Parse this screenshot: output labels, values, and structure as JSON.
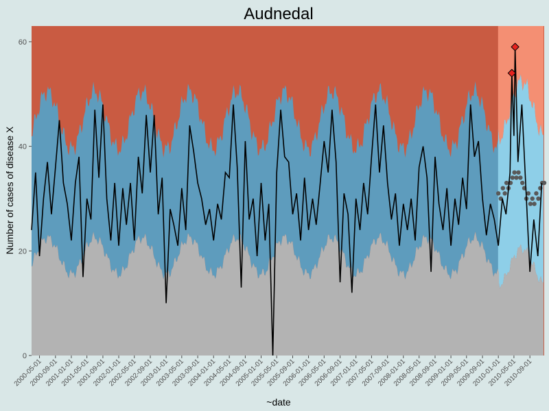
{
  "chart_data": {
    "type": "line",
    "title": "Audnedal",
    "xlabel": "~date",
    "ylabel": "Number of cases of disease X",
    "ylim": [
      0,
      63
    ],
    "y_ticks": [
      0,
      20,
      40,
      60
    ],
    "x_range": [
      "2000-03-01",
      "2010-12-20"
    ],
    "x_tick_labels": [
      "2000-05-01",
      "2000-09-01",
      "2001-01-01",
      "2001-05-01",
      "2001-09-01",
      "2002-01-01",
      "2002-05-01",
      "2002-09-01",
      "2003-01-01",
      "2003-05-01",
      "2003-09-01",
      "2004-01-01",
      "2004-05-01",
      "2004-09-01",
      "2005-01-01",
      "2005-05-01",
      "2005-09-01",
      "2006-01-01",
      "2006-05-01",
      "2006-09-01",
      "2007-01-01",
      "2007-05-01",
      "2007-09-01",
      "2008-01-01",
      "2008-05-01",
      "2008-09-01",
      "2009-01-01",
      "2009-05-01",
      "2009-09-01",
      "2010-01-01",
      "2010-05-01",
      "2010-09-01"
    ],
    "training_period_end": "2010-01-01",
    "colors": {
      "background": "#d9e7e7",
      "upper_band": "#c95b42",
      "upper_band_test": "#f48f73",
      "normal_band": "#5e9cbd",
      "normal_band_test": "#8ecfe8",
      "lower_band": "#b3b3b3",
      "observed_line": "#000000",
      "baseline_points": "#595959",
      "alert_marker": "#e8231f"
    },
    "observed_series": [
      {
        "x": "2000-03-01",
        "y": 24
      },
      {
        "x": "2000-04-01",
        "y": 35
      },
      {
        "x": "2000-05-01",
        "y": 19
      },
      {
        "x": "2000-06-01",
        "y": 30
      },
      {
        "x": "2000-07-01",
        "y": 37
      },
      {
        "x": "2000-08-01",
        "y": 27
      },
      {
        "x": "2000-09-01",
        "y": 36
      },
      {
        "x": "2000-10-01",
        "y": 45
      },
      {
        "x": "2000-11-01",
        "y": 33
      },
      {
        "x": "2000-12-01",
        "y": 29
      },
      {
        "x": "2001-01-01",
        "y": 22
      },
      {
        "x": "2001-02-01",
        "y": 33
      },
      {
        "x": "2001-03-01",
        "y": 38
      },
      {
        "x": "2001-04-01",
        "y": 15
      },
      {
        "x": "2001-05-01",
        "y": 30
      },
      {
        "x": "2001-06-01",
        "y": 26
      },
      {
        "x": "2001-07-01",
        "y": 47
      },
      {
        "x": "2001-08-01",
        "y": 34
      },
      {
        "x": "2001-09-01",
        "y": 48
      },
      {
        "x": "2001-10-01",
        "y": 30
      },
      {
        "x": "2001-11-01",
        "y": 22
      },
      {
        "x": "2001-12-01",
        "y": 33
      },
      {
        "x": "2002-01-01",
        "y": 21
      },
      {
        "x": "2002-02-01",
        "y": 32
      },
      {
        "x": "2002-03-01",
        "y": 25
      },
      {
        "x": "2002-04-01",
        "y": 33
      },
      {
        "x": "2002-05-01",
        "y": 22
      },
      {
        "x": "2002-06-01",
        "y": 38
      },
      {
        "x": "2002-07-01",
        "y": 31
      },
      {
        "x": "2002-08-01",
        "y": 46
      },
      {
        "x": "2002-09-01",
        "y": 35
      },
      {
        "x": "2002-10-01",
        "y": 46
      },
      {
        "x": "2002-11-01",
        "y": 27
      },
      {
        "x": "2002-12-01",
        "y": 34
      },
      {
        "x": "2003-01-01",
        "y": 10
      },
      {
        "x": "2003-02-01",
        "y": 28
      },
      {
        "x": "2003-03-01",
        "y": 25
      },
      {
        "x": "2003-04-01",
        "y": 21
      },
      {
        "x": "2003-05-01",
        "y": 32
      },
      {
        "x": "2003-06-01",
        "y": 24
      },
      {
        "x": "2003-07-01",
        "y": 44
      },
      {
        "x": "2003-08-01",
        "y": 39
      },
      {
        "x": "2003-09-01",
        "y": 33
      },
      {
        "x": "2003-10-01",
        "y": 30
      },
      {
        "x": "2003-11-01",
        "y": 25
      },
      {
        "x": "2003-12-01",
        "y": 28
      },
      {
        "x": "2004-01-01",
        "y": 22
      },
      {
        "x": "2004-02-01",
        "y": 29
      },
      {
        "x": "2004-03-01",
        "y": 26
      },
      {
        "x": "2004-04-01",
        "y": 35
      },
      {
        "x": "2004-05-01",
        "y": 34
      },
      {
        "x": "2004-06-01",
        "y": 48
      },
      {
        "x": "2004-07-01",
        "y": 36
      },
      {
        "x": "2004-08-01",
        "y": 13
      },
      {
        "x": "2004-09-01",
        "y": 41
      },
      {
        "x": "2004-10-01",
        "y": 26
      },
      {
        "x": "2004-11-01",
        "y": 30
      },
      {
        "x": "2004-12-01",
        "y": 19
      },
      {
        "x": "2005-01-01",
        "y": 33
      },
      {
        "x": "2005-02-01",
        "y": 22
      },
      {
        "x": "2005-03-01",
        "y": 29
      },
      {
        "x": "2005-04-01",
        "y": 0
      },
      {
        "x": "2005-05-01",
        "y": 35
      },
      {
        "x": "2005-06-01",
        "y": 47
      },
      {
        "x": "2005-07-01",
        "y": 38
      },
      {
        "x": "2005-08-01",
        "y": 37
      },
      {
        "x": "2005-09-01",
        "y": 27
      },
      {
        "x": "2005-10-01",
        "y": 31
      },
      {
        "x": "2005-11-01",
        "y": 22
      },
      {
        "x": "2005-12-01",
        "y": 34
      },
      {
        "x": "2006-01-01",
        "y": 24
      },
      {
        "x": "2006-02-01",
        "y": 30
      },
      {
        "x": "2006-03-01",
        "y": 25
      },
      {
        "x": "2006-04-01",
        "y": 33
      },
      {
        "x": "2006-05-01",
        "y": 41
      },
      {
        "x": "2006-06-01",
        "y": 35
      },
      {
        "x": "2006-07-01",
        "y": 47
      },
      {
        "x": "2006-08-01",
        "y": 37
      },
      {
        "x": "2006-09-01",
        "y": 14
      },
      {
        "x": "2006-10-01",
        "y": 31
      },
      {
        "x": "2006-11-01",
        "y": 27
      },
      {
        "x": "2006-12-01",
        "y": 12
      },
      {
        "x": "2007-01-01",
        "y": 30
      },
      {
        "x": "2007-02-01",
        "y": 24
      },
      {
        "x": "2007-03-01",
        "y": 33
      },
      {
        "x": "2007-04-01",
        "y": 27
      },
      {
        "x": "2007-05-01",
        "y": 38
      },
      {
        "x": "2007-06-01",
        "y": 48
      },
      {
        "x": "2007-07-01",
        "y": 35
      },
      {
        "x": "2007-08-01",
        "y": 44
      },
      {
        "x": "2007-09-01",
        "y": 33
      },
      {
        "x": "2007-10-01",
        "y": 26
      },
      {
        "x": "2007-11-01",
        "y": 31
      },
      {
        "x": "2007-12-01",
        "y": 21
      },
      {
        "x": "2008-01-01",
        "y": 29
      },
      {
        "x": "2008-02-01",
        "y": 24
      },
      {
        "x": "2008-03-01",
        "y": 30
      },
      {
        "x": "2008-04-01",
        "y": 22
      },
      {
        "x": "2008-05-01",
        "y": 36
      },
      {
        "x": "2008-06-01",
        "y": 40
      },
      {
        "x": "2008-07-01",
        "y": 34
      },
      {
        "x": "2008-08-01",
        "y": 16
      },
      {
        "x": "2008-09-01",
        "y": 38
      },
      {
        "x": "2008-10-01",
        "y": 29
      },
      {
        "x": "2008-11-01",
        "y": 24
      },
      {
        "x": "2008-12-01",
        "y": 32
      },
      {
        "x": "2009-01-01",
        "y": 21
      },
      {
        "x": "2009-02-01",
        "y": 30
      },
      {
        "x": "2009-03-01",
        "y": 25
      },
      {
        "x": "2009-04-01",
        "y": 34
      },
      {
        "x": "2009-05-01",
        "y": 28
      },
      {
        "x": "2009-06-01",
        "y": 48
      },
      {
        "x": "2009-07-01",
        "y": 38
      },
      {
        "x": "2009-08-01",
        "y": 41
      },
      {
        "x": "2009-09-01",
        "y": 30
      },
      {
        "x": "2009-10-01",
        "y": 23
      },
      {
        "x": "2009-11-01",
        "y": 29
      },
      {
        "x": "2009-12-01",
        "y": 26
      },
      {
        "x": "2010-01-01",
        "y": 21
      },
      {
        "x": "2010-02-01",
        "y": 30
      },
      {
        "x": "2010-03-01",
        "y": 27
      },
      {
        "x": "2010-04-01",
        "y": 35
      },
      {
        "x": "2010-04-15",
        "y": 54
      },
      {
        "x": "2010-05-01",
        "y": 42
      },
      {
        "x": "2010-05-10",
        "y": 59
      },
      {
        "x": "2010-06-01",
        "y": 37
      },
      {
        "x": "2010-07-01",
        "y": 48
      },
      {
        "x": "2010-08-01",
        "y": 32
      },
      {
        "x": "2010-09-01",
        "y": 16
      },
      {
        "x": "2010-10-01",
        "y": 26
      },
      {
        "x": "2010-11-01",
        "y": 19
      },
      {
        "x": "2010-12-01",
        "y": 33
      }
    ],
    "alerts": [
      {
        "x": "2010-04-15",
        "y": 54
      },
      {
        "x": "2010-05-10",
        "y": 59
      }
    ],
    "baseline_points": [
      {
        "x": "2010-01-01",
        "y": 31
      },
      {
        "x": "2010-01-20",
        "y": 30
      },
      {
        "x": "2010-02-05",
        "y": 32
      },
      {
        "x": "2010-02-20",
        "y": 31
      },
      {
        "x": "2010-03-05",
        "y": 33
      },
      {
        "x": "2010-03-20",
        "y": 32
      },
      {
        "x": "2010-04-05",
        "y": 33
      },
      {
        "x": "2010-04-20",
        "y": 34
      },
      {
        "x": "2010-05-05",
        "y": 35
      },
      {
        "x": "2010-05-20",
        "y": 34
      },
      {
        "x": "2010-06-05",
        "y": 35
      },
      {
        "x": "2010-06-20",
        "y": 34
      },
      {
        "x": "2010-07-05",
        "y": 33
      },
      {
        "x": "2010-07-20",
        "y": 32
      },
      {
        "x": "2010-08-05",
        "y": 30
      },
      {
        "x": "2010-08-20",
        "y": 31
      },
      {
        "x": "2010-09-05",
        "y": 29
      },
      {
        "x": "2010-09-20",
        "y": 30
      },
      {
        "x": "2010-10-05",
        "y": 29
      },
      {
        "x": "2010-10-20",
        "y": 31
      },
      {
        "x": "2010-11-05",
        "y": 30
      },
      {
        "x": "2010-11-20",
        "y": 32
      },
      {
        "x": "2010-12-05",
        "y": 33
      },
      {
        "x": "2010-12-20",
        "y": 33
      }
    ],
    "grid": false,
    "legend": "none"
  }
}
